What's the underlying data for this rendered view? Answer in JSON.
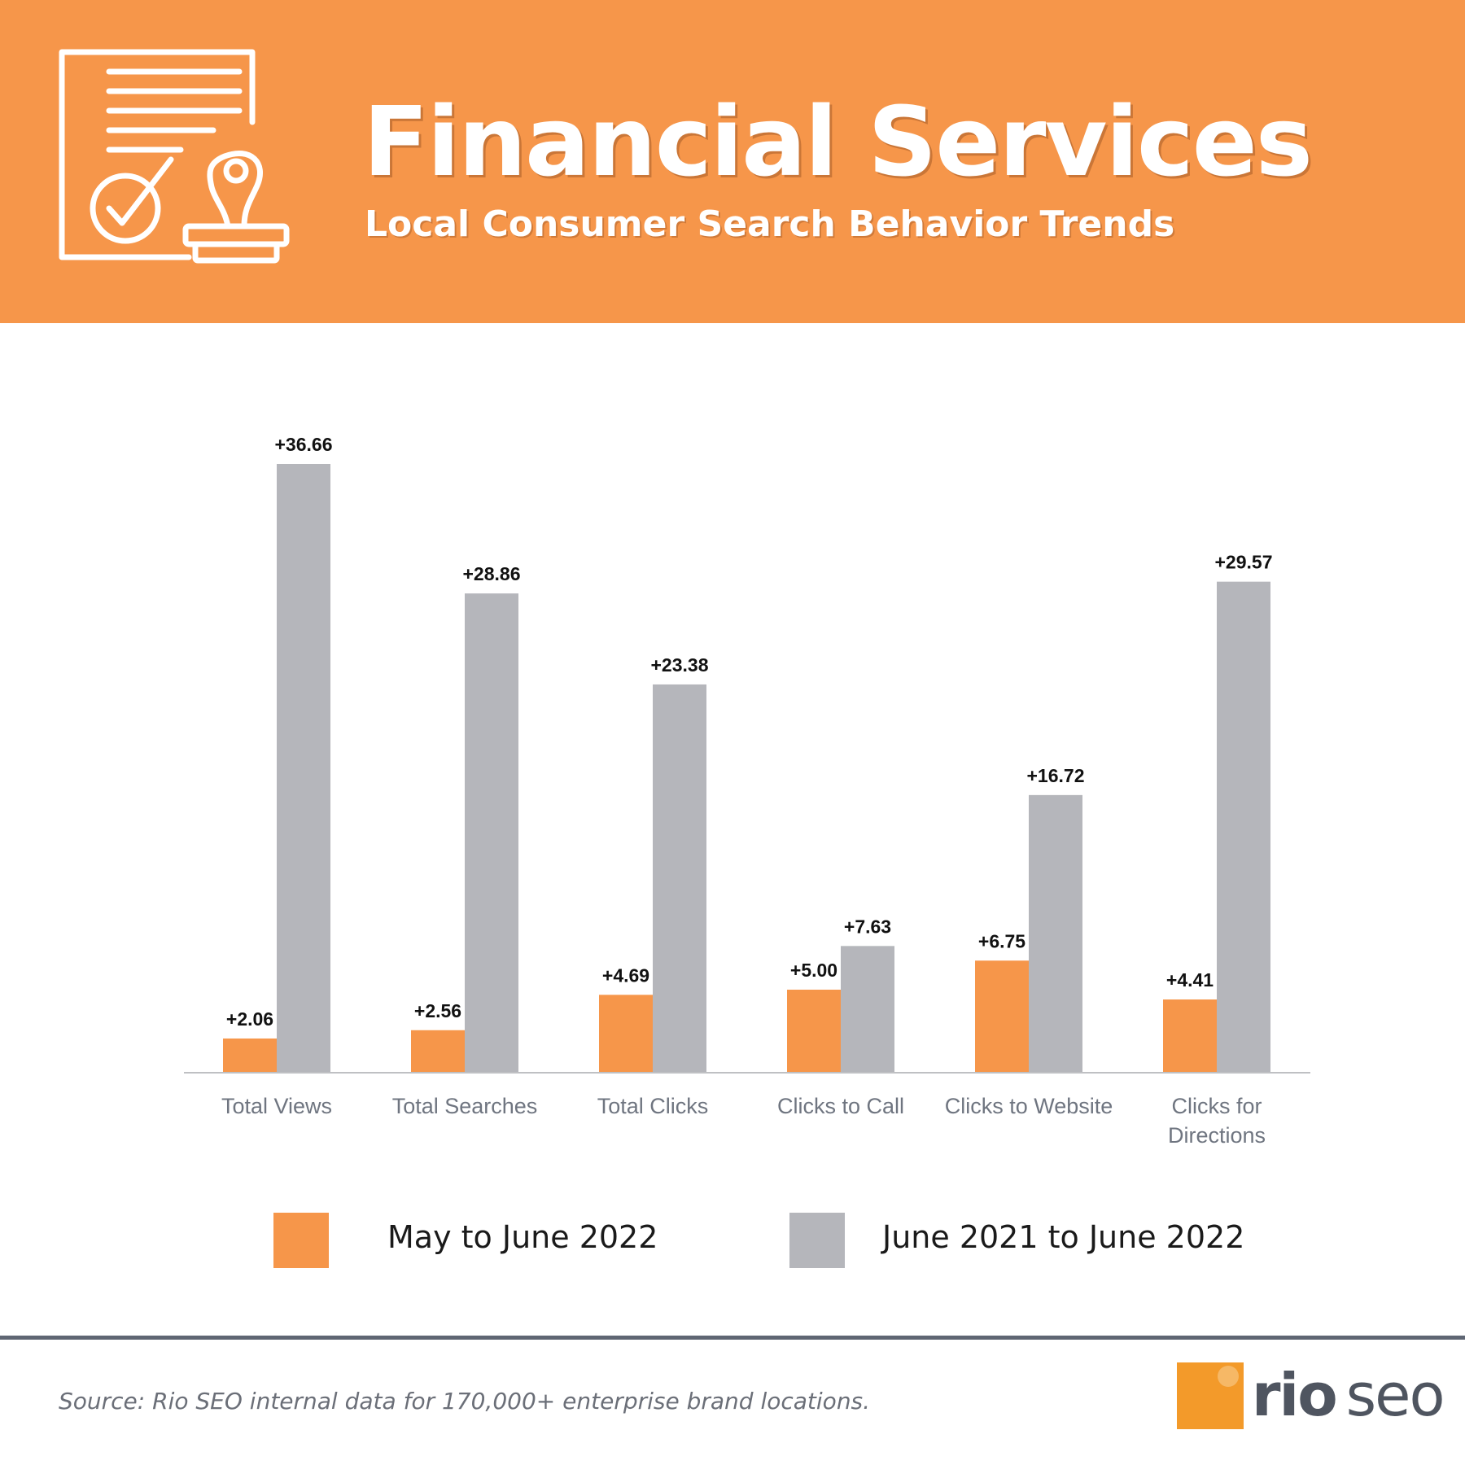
{
  "header": {
    "title": "Financial Services",
    "subtitle": "Local Consumer Search Behavior Trends",
    "icon": "financial-document-stamp-icon"
  },
  "colors": {
    "header_bg": "#f6964a",
    "series_may_june": "#f6964a",
    "series_year": "#b5b6bb",
    "axis": "#bfc0c3",
    "divider": "#5f6673"
  },
  "chart_data": {
    "type": "bar",
    "categories": [
      "Total Views",
      "Total Searches",
      "Total Clicks",
      "Clicks to Call",
      "Clicks to Website",
      "Clicks for Directions"
    ],
    "series": [
      {
        "name": "May to June 2022",
        "values": [
          2.06,
          2.56,
          4.69,
          5.0,
          6.75,
          4.41
        ],
        "labels": [
          "+2.06",
          "+2.56",
          "+4.69",
          "+5.00",
          "+6.75",
          "+4.41"
        ]
      },
      {
        "name": "June 2021 to June 2022",
        "values": [
          36.66,
          28.86,
          23.38,
          7.63,
          16.72,
          29.57
        ],
        "labels": [
          "+36.66",
          "+28.86",
          "+23.38",
          "+7.63",
          "+16.72",
          "+29.57"
        ]
      }
    ],
    "title": "Financial Services",
    "xlabel": "",
    "ylabel": "",
    "ylim": [
      0,
      36.66
    ],
    "grid": false,
    "legend": "bottom"
  },
  "legend": {
    "items": [
      {
        "label": "May to June 2022"
      },
      {
        "label": "June 2021 to June 2022"
      }
    ]
  },
  "footer": {
    "source": "Source: Rio SEO internal data for 170,000+ enterprise brand locations.",
    "logo_rio": "rio",
    "logo_seo": "seo"
  }
}
